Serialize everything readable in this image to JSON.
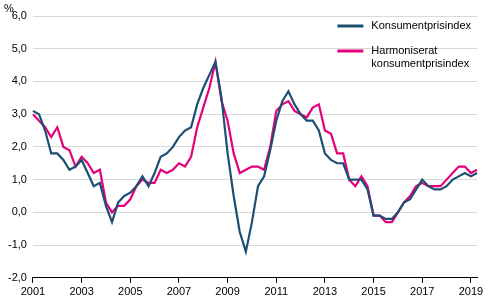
{
  "chart_data": {
    "type": "line",
    "ylabel": "%",
    "categories": [
      "2001",
      null,
      null,
      null,
      null,
      null,
      null,
      null,
      "2003",
      null,
      null,
      null,
      null,
      null,
      null,
      null,
      "2005",
      null,
      null,
      null,
      null,
      null,
      null,
      null,
      "2007",
      null,
      null,
      null,
      null,
      null,
      null,
      null,
      "2009",
      null,
      null,
      null,
      null,
      null,
      null,
      null,
      "2011",
      null,
      null,
      null,
      null,
      null,
      null,
      null,
      "2013",
      null,
      null,
      null,
      null,
      null,
      null,
      null,
      "2015",
      null,
      null,
      null,
      null,
      null,
      null,
      null,
      "2017",
      null,
      null,
      null,
      null,
      null,
      null,
      null,
      "2019",
      null
    ],
    "series": [
      {
        "name": "Konsumentprisindex",
        "color": "#1c4f73",
        "values": [
          3.1,
          3.0,
          2.5,
          1.8,
          1.8,
          1.6,
          1.3,
          1.4,
          1.6,
          1.2,
          0.8,
          0.9,
          0.2,
          -0.3,
          0.3,
          0.5,
          0.6,
          0.8,
          1.1,
          0.8,
          1.2,
          1.7,
          1.8,
          2.0,
          2.3,
          2.5,
          2.6,
          3.3,
          3.8,
          4.2,
          4.6,
          3.5,
          1.8,
          0.5,
          -0.6,
          -1.2,
          -0.3,
          0.8,
          1.1,
          1.9,
          2.8,
          3.4,
          3.7,
          3.3,
          3.0,
          2.8,
          2.8,
          2.5,
          1.8,
          1.6,
          1.5,
          1.5,
          1.0,
          1.0,
          1.0,
          0.7,
          -0.1,
          -0.1,
          -0.2,
          -0.2,
          0.0,
          0.3,
          0.4,
          0.7,
          1.0,
          0.8,
          0.7,
          0.7,
          0.8,
          1.0,
          1.1,
          1.2,
          1.1,
          1.2
        ]
      },
      {
        "name": "Harmoniserat konsumentprisindex",
        "color": "#e5007d",
        "values": [
          3.0,
          2.8,
          2.6,
          2.3,
          2.6,
          2.0,
          1.9,
          1.4,
          1.7,
          1.5,
          1.2,
          1.3,
          0.3,
          0.0,
          0.2,
          0.2,
          0.4,
          0.8,
          1.0,
          0.9,
          0.9,
          1.3,
          1.2,
          1.3,
          1.5,
          1.4,
          1.7,
          2.6,
          3.2,
          3.8,
          4.6,
          3.4,
          2.8,
          1.8,
          1.2,
          1.3,
          1.4,
          1.4,
          1.3,
          2.0,
          3.1,
          3.3,
          3.4,
          3.1,
          3.0,
          2.9,
          3.2,
          3.3,
          2.5,
          2.4,
          1.8,
          1.8,
          1.0,
          0.8,
          1.1,
          0.8,
          -0.1,
          -0.1,
          -0.3,
          -0.3,
          0.0,
          0.3,
          0.5,
          0.8,
          0.9,
          0.8,
          0.8,
          0.8,
          1.0,
          1.2,
          1.4,
          1.4,
          1.2,
          1.3
        ]
      }
    ],
    "ylim": [
      -2,
      6
    ],
    "yticks": [
      {
        "value": -2,
        "label": "-2,0"
      },
      {
        "value": -1,
        "label": "-1,0"
      },
      {
        "value": 0,
        "label": "0,0"
      },
      {
        "value": 1,
        "label": "1,0"
      },
      {
        "value": 2,
        "label": "2,0"
      },
      {
        "value": 3,
        "label": "3,0"
      },
      {
        "value": 4,
        "label": "4,0"
      },
      {
        "value": 5,
        "label": "5,0"
      },
      {
        "value": 6,
        "label": "6,0"
      }
    ],
    "grid": true,
    "legend": "top-right"
  }
}
